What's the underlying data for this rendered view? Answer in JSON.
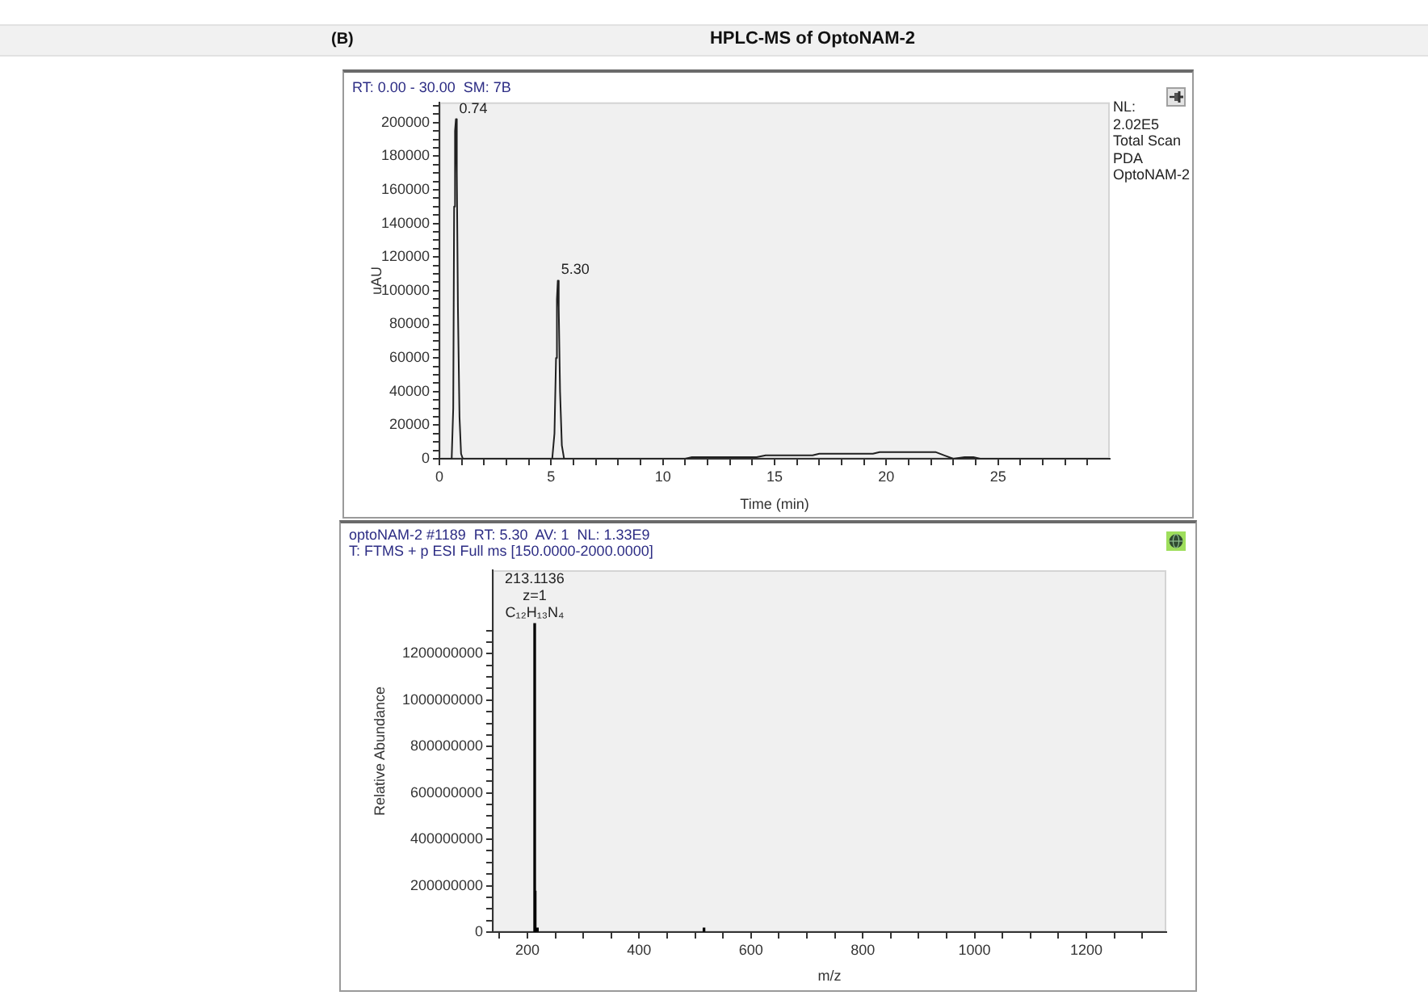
{
  "chart_data": [
    {
      "type": "line",
      "title": "HPLC-MS of OptoNAM-2",
      "subtitle": "RT: 0.00 - 30.00  SM: 7B",
      "xlabel": "Time (min)",
      "ylabel": "uAU",
      "annotations": [
        "(B)",
        "NL:",
        "2.02E5",
        "Total Scan",
        "PDA",
        "OptoNAM-2",
        {
          "text": "0.74",
          "x": 0.74,
          "y": 202000
        },
        {
          "text": "5.30",
          "x": 5.3,
          "y": 106000
        }
      ],
      "x": [
        0,
        0.55,
        0.62,
        0.66,
        0.7,
        0.74,
        0.78,
        0.83,
        0.9,
        0.97,
        1.05,
        5.05,
        5.15,
        5.22,
        5.26,
        5.3,
        5.34,
        5.4,
        5.48,
        5.58,
        11,
        11.3,
        14.2,
        14.6,
        16.7,
        17,
        19.4,
        19.7,
        22.2,
        22.6,
        23,
        23.5,
        23.9,
        24.2,
        30
      ],
      "values": [
        0,
        0,
        30000,
        150000,
        195000,
        202000,
        170000,
        90000,
        25000,
        3000,
        0,
        0,
        15000,
        60000,
        95000,
        106000,
        90000,
        40000,
        8000,
        0,
        0,
        1000,
        1000,
        2000,
        2000,
        3000,
        3000,
        4000,
        4000,
        2000,
        0,
        1000,
        1000,
        0,
        0
      ],
      "color": "#202020",
      "xlim": [
        0,
        30
      ],
      "xticks": [
        0,
        {
          "value": 1,
          "label": null
        },
        {
          "value": 2,
          "label": null
        },
        {
          "value": 3,
          "label": null
        },
        {
          "value": 4,
          "label": null
        },
        5,
        {
          "value": 6,
          "label": null
        },
        {
          "value": 7,
          "label": null
        },
        {
          "value": 8,
          "label": null
        },
        {
          "value": 9,
          "label": null
        },
        10,
        {
          "value": 11,
          "label": null
        },
        {
          "value": 12,
          "label": null
        },
        {
          "value": 13,
          "label": null
        },
        {
          "value": 14,
          "label": null
        },
        15,
        {
          "value": 16,
          "label": null
        },
        {
          "value": 17,
          "label": null
        },
        {
          "value": 18,
          "label": null
        },
        {
          "value": 19,
          "label": null
        },
        20,
        {
          "value": 21,
          "label": null
        },
        {
          "value": 22,
          "label": null
        },
        {
          "value": 23,
          "label": null
        },
        {
          "value": 24,
          "label": null
        },
        25,
        {
          "value": 26,
          "label": null
        },
        {
          "value": 27,
          "label": null
        },
        {
          "value": 28,
          "label": null
        },
        {
          "value": 29,
          "label": null
        }
      ],
      "ylim": [
        0,
        212000
      ],
      "yticks": [
        0,
        {
          "value": 5000,
          "label": null
        },
        {
          "value": 10000,
          "label": null
        },
        {
          "value": 15000,
          "label": null
        },
        20000,
        {
          "value": 25000,
          "label": null
        },
        {
          "value": 30000,
          "label": null
        },
        {
          "value": 35000,
          "label": null
        },
        40000,
        {
          "value": 45000,
          "label": null
        },
        {
          "value": 50000,
          "label": null
        },
        {
          "value": 55000,
          "label": null
        },
        60000,
        {
          "value": 65000,
          "label": null
        },
        {
          "value": 70000,
          "label": null
        },
        {
          "value": 75000,
          "label": null
        },
        80000,
        {
          "value": 85000,
          "label": null
        },
        {
          "value": 90000,
          "label": null
        },
        {
          "value": 95000,
          "label": null
        },
        100000,
        {
          "value": 105000,
          "label": null
        },
        {
          "value": 110000,
          "label": null
        },
        {
          "value": 115000,
          "label": null
        },
        120000,
        {
          "value": 125000,
          "label": null
        },
        {
          "value": 130000,
          "label": null
        },
        {
          "value": 135000,
          "label": null
        },
        140000,
        {
          "value": 145000,
          "label": null
        },
        {
          "value": 150000,
          "label": null
        },
        {
          "value": 155000,
          "label": null
        },
        160000,
        {
          "value": 165000,
          "label": null
        },
        {
          "value": 170000,
          "label": null
        },
        {
          "value": 175000,
          "label": null
        },
        180000,
        {
          "value": 185000,
          "label": null
        },
        {
          "value": 190000,
          "label": null
        },
        {
          "value": 195000,
          "label": null
        },
        200000,
        {
          "value": 205000,
          "label": null
        },
        {
          "value": 210000,
          "label": null
        }
      ]
    },
    {
      "type": "bar",
      "subtitle": "optoNAM-2 #1189  RT: 5.30  AV: 1  NL: 1.33E9\nT: FTMS + p ESI Full ms [150.0000-2000.0000]",
      "xlabel": "m/z",
      "ylabel": "Relative Abundance",
      "annotations": [
        {
          "text": "213.1136",
          "x": 213.1136,
          "y": 1330000000
        },
        {
          "text": "z=1",
          "x": 213.1136,
          "y": 1330000000
        },
        {
          "text": "C₁₂H₁₃N₄",
          "x": 213.1136,
          "y": 1330000000
        }
      ],
      "x": [
        213.1136,
        214,
        218,
        516
      ],
      "values": [
        1330000000,
        176000000,
        17000000,
        17000000
      ],
      "color": "#000000",
      "xlim": [
        138,
        1343
      ],
      "xticks": [
        {
          "value": 150,
          "label": null
        },
        200,
        {
          "value": 250,
          "label": null
        },
        {
          "value": 300,
          "label": null
        },
        {
          "value": 350,
          "label": null
        },
        400,
        {
          "value": 450,
          "label": null
        },
        {
          "value": 500,
          "label": null
        },
        {
          "value": 550,
          "label": null
        },
        600,
        {
          "value": 650,
          "label": null
        },
        {
          "value": 700,
          "label": null
        },
        {
          "value": 750,
          "label": null
        },
        800,
        {
          "value": 850,
          "label": null
        },
        {
          "value": 900,
          "label": null
        },
        {
          "value": 950,
          "label": null
        },
        1000,
        {
          "value": 1050,
          "label": null
        },
        {
          "value": 1100,
          "label": null
        },
        {
          "value": 1150,
          "label": null
        },
        1200,
        {
          "value": 1250,
          "label": null
        },
        {
          "value": 1300,
          "label": null
        }
      ],
      "ylim": [
        0,
        1560000000
      ],
      "yticks": [
        0,
        {
          "value": 50000000,
          "label": null
        },
        {
          "value": 100000000,
          "label": null
        },
        {
          "value": 150000000,
          "label": null
        },
        200000000,
        {
          "value": 250000000,
          "label": null
        },
        {
          "value": 300000000,
          "label": null
        },
        {
          "value": 350000000,
          "label": null
        },
        400000000,
        {
          "value": 450000000,
          "label": null
        },
        {
          "value": 500000000,
          "label": null
        },
        {
          "value": 550000000,
          "label": null
        },
        600000000,
        {
          "value": 650000000,
          "label": null
        },
        {
          "value": 700000000,
          "label": null
        },
        {
          "value": 750000000,
          "label": null
        },
        800000000,
        {
          "value": 850000000,
          "label": null
        },
        {
          "value": 900000000,
          "label": null
        },
        {
          "value": 950000000,
          "label": null
        },
        1000000000,
        {
          "value": 1050000000,
          "label": null
        },
        {
          "value": 1100000000,
          "label": null
        },
        {
          "value": 1150000000,
          "label": null
        },
        1200000000,
        {
          "value": 1250000000,
          "label": null
        },
        {
          "value": 1300000000,
          "label": null
        }
      ]
    }
  ]
}
